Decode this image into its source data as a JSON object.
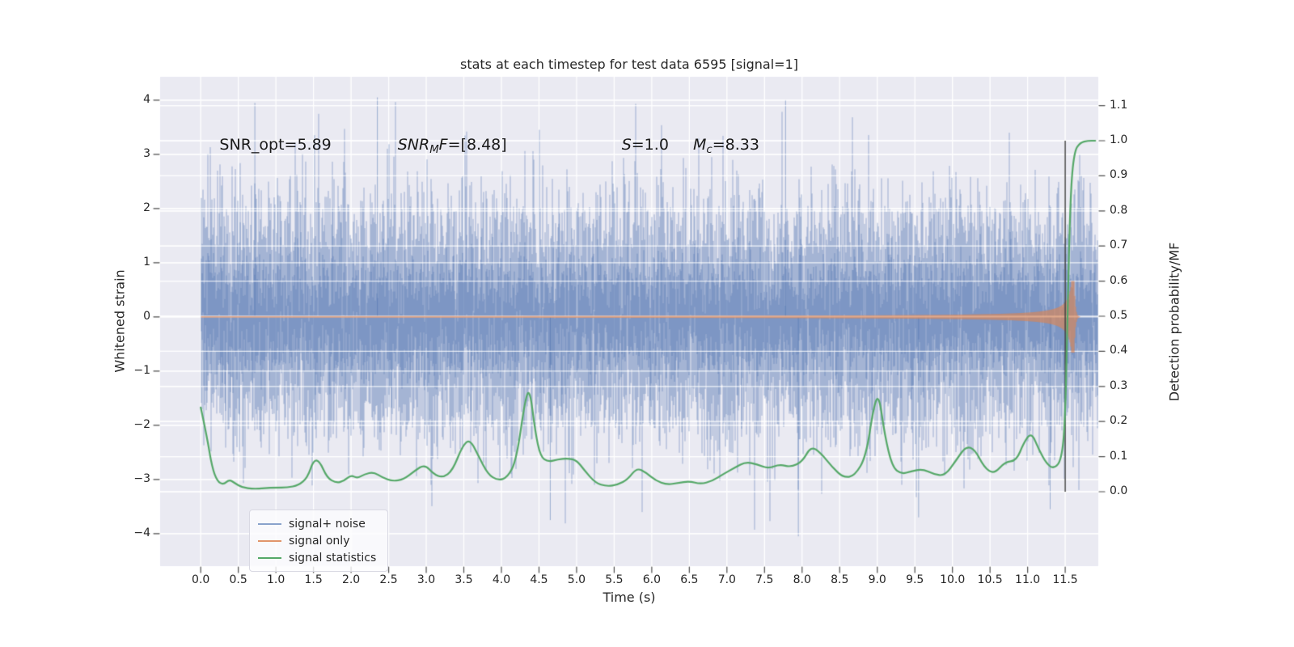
{
  "chart_data": {
    "type": "line",
    "title": "stats at each timestep for test data 6595 [signal=1]",
    "xlabel": "Time (s)",
    "ylabel_left": "Whitened strain",
    "ylabel_right": "Detection probability/MF",
    "axes": {
      "xlim": [
        -0.54,
        11.94
      ],
      "ylim_left": [
        -4.6,
        4.43
      ],
      "ylim_right": [
        -0.212,
        1.182
      ],
      "xticks": [
        0.0,
        0.5,
        1.0,
        1.5,
        2.0,
        2.5,
        3.0,
        3.5,
        4.0,
        4.5,
        5.0,
        5.5,
        6.0,
        6.5,
        7.0,
        7.5,
        8.0,
        8.5,
        9.0,
        9.5,
        10.0,
        10.5,
        11.0,
        11.5
      ],
      "yticks_left": [
        4,
        3,
        2,
        1,
        0,
        -1,
        -2,
        -3,
        -4
      ],
      "yticks_right": [
        1.1,
        1.0,
        0.9,
        0.8,
        0.7,
        0.6,
        0.5,
        0.4,
        0.3,
        0.2,
        0.1,
        0.0
      ],
      "grid": true
    },
    "colors": {
      "axes_bg": "#eaeaf2",
      "grid": "#ffffff",
      "noise": "#4C72B0",
      "signal": "#DD8452",
      "stat": "#55A868",
      "event_line": "#3b3b3b",
      "text": "#262626"
    },
    "annotations": [
      {
        "name": "snr-opt",
        "t": 0.25,
        "y_strain": 3.15,
        "segments": [
          {
            "text": "SNR_opt=5.89",
            "style": "normal"
          }
        ]
      },
      {
        "name": "snr-mf",
        "t": 2.62,
        "y_strain": 3.15,
        "segments": [
          {
            "text": "SNR",
            "style": "italic"
          },
          {
            "text": "M",
            "style": "sub"
          },
          {
            "text": "F",
            "style": "italic"
          },
          {
            "text": "=[8.48]",
            "style": "normal"
          }
        ]
      },
      {
        "name": "s-value",
        "t": 5.6,
        "y_strain": 3.15,
        "segments": [
          {
            "text": "S",
            "style": "italic"
          },
          {
            "text": "=1.0",
            "style": "normal"
          }
        ]
      },
      {
        "name": "chirp-mass",
        "t": 6.55,
        "y_strain": 3.15,
        "segments": [
          {
            "text": "M",
            "style": "italic"
          },
          {
            "text": "c",
            "style": "sub"
          },
          {
            "text": "=8.33",
            "style": "normal"
          }
        ]
      }
    ],
    "legend": {
      "location": "lower left",
      "items": [
        {
          "label": "signal+ noise",
          "color": "rgba(76,114,176,0.65)"
        },
        {
          "label": "signal only",
          "color": "rgba(221,132,82,0.85)"
        },
        {
          "label": "signal statistics",
          "color": "#55A868"
        }
      ]
    },
    "event_line": {
      "t": 11.5,
      "from_prob": 0.0,
      "to_prob": 1.0
    },
    "series": [
      {
        "name": "signal+ noise",
        "axis": "left",
        "type": "noise_band",
        "t_start": 0.0,
        "t_end": 11.93,
        "mean": 0.0,
        "std": 1.0,
        "observed_range": [
          -4.1,
          4.1
        ],
        "seed": 7595,
        "samples_per_column": 14,
        "notable_extremes": [
          [
            0.72,
            3.95
          ],
          [
            2.35,
            4.05
          ],
          [
            7.78,
            4.0
          ],
          [
            7.95,
            -4.05
          ],
          [
            4.65,
            -3.75
          ],
          [
            9.55,
            -3.7
          ],
          [
            11.3,
            -3.55
          ]
        ]
      },
      {
        "name": "signal only",
        "axis": "left",
        "type": "chirp_envelope",
        "t_start": 0.0,
        "t_coalesce": 11.62,
        "t_end": 11.7,
        "amp_floor": 0.006,
        "amp_scale": 0.05,
        "amp_eps": 0.005,
        "amp_exponent": -0.8,
        "peak_amp": 0.66,
        "ringdown_tau": 0.015
      },
      {
        "name": "signal statistics",
        "axis": "right",
        "type": "line",
        "points": [
          [
            0.0,
            0.24
          ],
          [
            0.08,
            0.16
          ],
          [
            0.15,
            0.07
          ],
          [
            0.22,
            0.03
          ],
          [
            0.3,
            0.02
          ],
          [
            0.38,
            0.035
          ],
          [
            0.45,
            0.025
          ],
          [
            0.55,
            0.012
          ],
          [
            0.7,
            0.008
          ],
          [
            0.85,
            0.01
          ],
          [
            1.0,
            0.012
          ],
          [
            1.15,
            0.012
          ],
          [
            1.3,
            0.018
          ],
          [
            1.42,
            0.04
          ],
          [
            1.5,
            0.09
          ],
          [
            1.58,
            0.088
          ],
          [
            1.68,
            0.04
          ],
          [
            1.8,
            0.025
          ],
          [
            1.9,
            0.03
          ],
          [
            2.0,
            0.048
          ],
          [
            2.08,
            0.038
          ],
          [
            2.18,
            0.05
          ],
          [
            2.3,
            0.056
          ],
          [
            2.42,
            0.04
          ],
          [
            2.55,
            0.03
          ],
          [
            2.7,
            0.035
          ],
          [
            2.85,
            0.06
          ],
          [
            2.98,
            0.078
          ],
          [
            3.1,
            0.05
          ],
          [
            3.22,
            0.04
          ],
          [
            3.35,
            0.06
          ],
          [
            3.48,
            0.13
          ],
          [
            3.58,
            0.15
          ],
          [
            3.7,
            0.1
          ],
          [
            3.82,
            0.05
          ],
          [
            3.95,
            0.032
          ],
          [
            4.08,
            0.04
          ],
          [
            4.2,
            0.09
          ],
          [
            4.32,
            0.27
          ],
          [
            4.38,
            0.29
          ],
          [
            4.45,
            0.17
          ],
          [
            4.52,
            0.1
          ],
          [
            4.62,
            0.085
          ],
          [
            4.75,
            0.092
          ],
          [
            4.88,
            0.095
          ],
          [
            5.0,
            0.09
          ],
          [
            5.1,
            0.062
          ],
          [
            5.25,
            0.025
          ],
          [
            5.4,
            0.015
          ],
          [
            5.55,
            0.02
          ],
          [
            5.68,
            0.035
          ],
          [
            5.8,
            0.068
          ],
          [
            5.92,
            0.055
          ],
          [
            6.05,
            0.032
          ],
          [
            6.2,
            0.02
          ],
          [
            6.35,
            0.025
          ],
          [
            6.5,
            0.03
          ],
          [
            6.65,
            0.022
          ],
          [
            6.8,
            0.03
          ],
          [
            6.95,
            0.05
          ],
          [
            7.1,
            0.068
          ],
          [
            7.25,
            0.085
          ],
          [
            7.4,
            0.078
          ],
          [
            7.55,
            0.066
          ],
          [
            7.7,
            0.078
          ],
          [
            7.85,
            0.07
          ],
          [
            8.0,
            0.085
          ],
          [
            8.12,
            0.13
          ],
          [
            8.25,
            0.11
          ],
          [
            8.4,
            0.07
          ],
          [
            8.55,
            0.04
          ],
          [
            8.7,
            0.045
          ],
          [
            8.85,
            0.1
          ],
          [
            8.95,
            0.24
          ],
          [
            9.02,
            0.28
          ],
          [
            9.1,
            0.16
          ],
          [
            9.2,
            0.07
          ],
          [
            9.32,
            0.05
          ],
          [
            9.45,
            0.058
          ],
          [
            9.6,
            0.065
          ],
          [
            9.75,
            0.05
          ],
          [
            9.9,
            0.045
          ],
          [
            10.05,
            0.09
          ],
          [
            10.18,
            0.13
          ],
          [
            10.3,
            0.12
          ],
          [
            10.42,
            0.07
          ],
          [
            10.55,
            0.05
          ],
          [
            10.7,
            0.085
          ],
          [
            10.85,
            0.088
          ],
          [
            10.95,
            0.14
          ],
          [
            11.05,
            0.17
          ],
          [
            11.15,
            0.12
          ],
          [
            11.25,
            0.08
          ],
          [
            11.35,
            0.065
          ],
          [
            11.45,
            0.09
          ],
          [
            11.5,
            0.2
          ],
          [
            11.53,
            0.5
          ],
          [
            11.57,
            0.85
          ],
          [
            11.62,
            0.97
          ],
          [
            11.7,
            0.995
          ],
          [
            11.8,
            1.0
          ],
          [
            11.9,
            1.0
          ]
        ]
      }
    ]
  }
}
